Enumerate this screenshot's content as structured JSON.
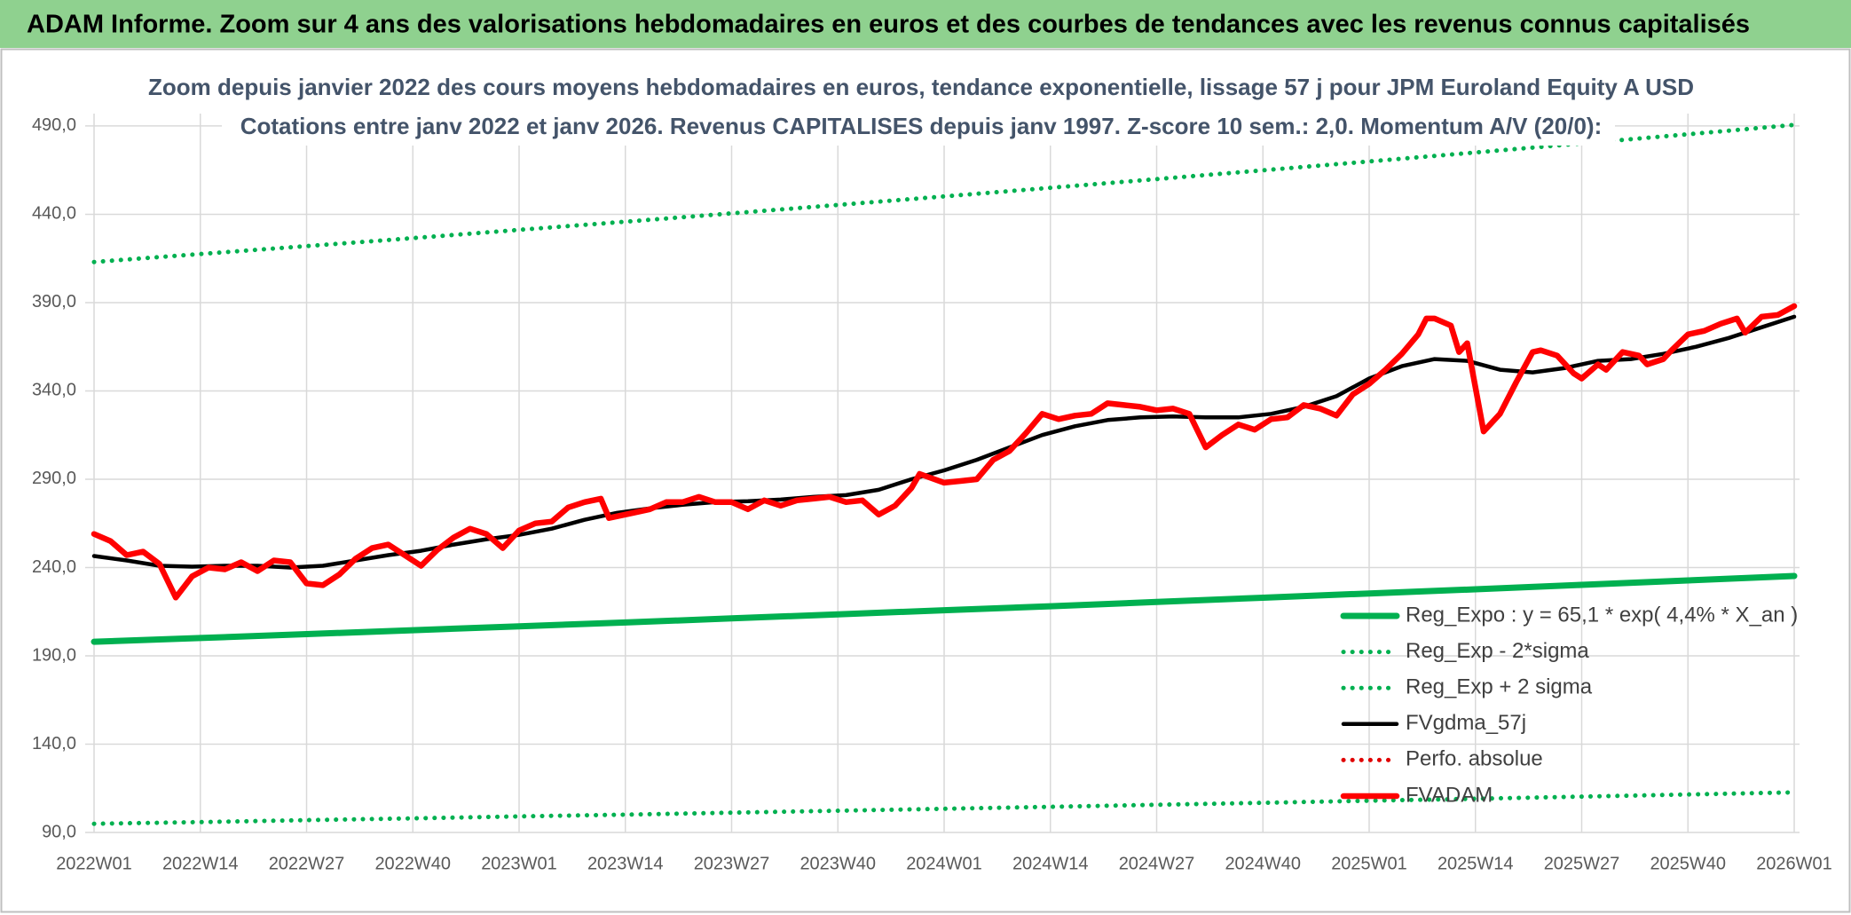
{
  "header": {
    "title": "ADAM Informe. Zoom sur 4 ans des valorisations hebdomadaires en euros et des courbes de tendances avec les revenus connus capitalisés"
  },
  "chart_data": {
    "type": "line",
    "title": "Zoom depuis janvier 2022 des cours moyens hebdomadaires en euros, tendance exponentielle, lissage 57 j pour JPM Euroland Equity A USD",
    "subtitle": "Cotations entre janv 2022 et janv 2026. Revenus CAPITALISES depuis janv 1997. Z-score 10 sem.: 2,0. Momentum A/V (20/0):",
    "xticks": [
      "2022W01",
      "2022W14",
      "2022W27",
      "2022W40",
      "2023W01",
      "2023W14",
      "2023W27",
      "2023W40",
      "2024W01",
      "2024W14",
      "2024W27",
      "2024W40",
      "2025W01",
      "2025W14",
      "2025W27",
      "2025W40",
      "2026W01"
    ],
    "ylim": [
      90,
      497
    ],
    "yticks": [
      {
        "value": 90,
        "label": "90,0"
      },
      {
        "value": 140,
        "label": "140,0"
      },
      {
        "value": 190,
        "label": "190,0"
      },
      {
        "value": 240,
        "label": "240,0"
      },
      {
        "value": 290,
        "label": "290,0"
      },
      {
        "value": 340,
        "label": "340,0"
      },
      {
        "value": 390,
        "label": "390,0"
      },
      {
        "value": 440,
        "label": "440,0"
      },
      {
        "value": 490,
        "label": "490,0"
      }
    ],
    "grid": true,
    "legend": "lower-right",
    "series": [
      {
        "name": "Reg_Expo : y = 65,1 * exp( 4,4% *  X_an )",
        "color": "#00b050",
        "style": "thick",
        "x": [
          "2022W01",
          "2022W14",
          "2022W27",
          "2022W40",
          "2023W01",
          "2023W14",
          "2023W27",
          "2023W40",
          "2024W01",
          "2024W14",
          "2024W27",
          "2024W40",
          "2025W01",
          "2025W14",
          "2025W27",
          "2025W40",
          "2026W01"
        ],
        "values": [
          198.0,
          200.1,
          202.3,
          204.5,
          206.7,
          208.9,
          211.2,
          213.5,
          215.8,
          218.1,
          220.5,
          222.9,
          225.3,
          227.7,
          230.2,
          232.7,
          235.2
        ]
      },
      {
        "name": "Reg_Exp - 2*sigma",
        "color": "#00b050",
        "style": "dotted",
        "x": [
          "2022W01",
          "2022W14",
          "2022W27",
          "2022W40",
          "2023W01",
          "2023W14",
          "2023W27",
          "2023W40",
          "2024W01",
          "2024W14",
          "2024W27",
          "2024W40",
          "2025W01",
          "2025W14",
          "2025W27",
          "2025W40",
          "2026W01"
        ],
        "values": [
          94.9,
          95.9,
          97.0,
          98.0,
          99.1,
          100.1,
          101.2,
          102.3,
          103.4,
          104.5,
          105.7,
          106.8,
          108.0,
          109.1,
          110.3,
          111.5,
          112.7
        ]
      },
      {
        "name": "Reg_Exp + 2 sigma",
        "color": "#00b050",
        "style": "dotted",
        "x": [
          "2022W01",
          "2022W14",
          "2022W27",
          "2022W40",
          "2023W01",
          "2023W14",
          "2023W27",
          "2023W40",
          "2024W01",
          "2024W14",
          "2024W27",
          "2024W40",
          "2025W01",
          "2025W14",
          "2025W27",
          "2025W40",
          "2026W01"
        ],
        "values": [
          413.0,
          417.5,
          422.0,
          426.5,
          431.2,
          435.8,
          440.5,
          445.3,
          450.1,
          455.0,
          459.9,
          464.9,
          469.9,
          475.0,
          480.1,
          485.3,
          490.6
        ]
      },
      {
        "name": "FVgdma_57j",
        "color": "#000000",
        "style": "solid",
        "x": [
          "2022W01",
          "2022W05",
          "2022W09",
          "2022W13",
          "2022W17",
          "2022W21",
          "2022W25",
          "2022W29",
          "2022W33",
          "2022W37",
          "2022W41",
          "2022W45",
          "2022W49",
          "2023W01",
          "2023W05",
          "2023W09",
          "2023W13",
          "2023W17",
          "2023W21",
          "2023W25",
          "2023W29",
          "2023W33",
          "2023W37",
          "2023W41",
          "2023W45",
          "2023W49",
          "2024W01",
          "2024W05",
          "2024W09",
          "2024W13",
          "2024W17",
          "2024W21",
          "2024W25",
          "2024W29",
          "2024W33",
          "2024W37",
          "2024W41",
          "2024W45",
          "2024W49",
          "2025W01",
          "2025W05",
          "2025W09",
          "2025W13",
          "2025W17",
          "2025W21",
          "2025W25",
          "2025W29",
          "2025W33",
          "2025W37",
          "2025W41",
          "2025W45",
          "2025W49",
          "2026W01"
        ],
        "values": [
          246.5,
          244,
          241,
          240.5,
          241,
          241,
          240,
          241,
          244,
          247,
          249.5,
          253,
          256,
          258.5,
          262,
          267,
          271,
          273.5,
          275.5,
          277,
          277.5,
          278.5,
          280,
          281,
          284,
          290,
          295,
          301,
          308,
          315,
          320,
          323.5,
          325,
          325.5,
          325,
          325,
          327,
          331,
          337,
          347,
          354,
          358,
          357,
          352,
          350.5,
          353,
          357,
          358,
          361,
          365,
          370,
          376,
          382
        ]
      },
      {
        "name": "Perfo. absolue",
        "color": "#e00000",
        "style": "dotted",
        "x": [],
        "values": []
      },
      {
        "name": "FVADAM",
        "color": "#ff0000",
        "style": "thick",
        "x": [
          "2022W01",
          "2022W03",
          "2022W05",
          "2022W07",
          "2022W09",
          "2022W11",
          "2022W13",
          "2022W15",
          "2022W17",
          "2022W19",
          "2022W21",
          "2022W23",
          "2022W25",
          "2022W27",
          "2022W29",
          "2022W31",
          "2022W33",
          "2022W35",
          "2022W37",
          "2022W39",
          "2022W41",
          "2022W43",
          "2022W45",
          "2022W47",
          "2022W49",
          "2022W51",
          "2023W01",
          "2023W03",
          "2023W05",
          "2023W07",
          "2023W09",
          "2023W11",
          "2023W12",
          "2023W15",
          "2023W17",
          "2023W19",
          "2023W21",
          "2023W23",
          "2023W25",
          "2023W27",
          "2023W29",
          "2023W31",
          "2023W33",
          "2023W35",
          "2023W37",
          "2023W39",
          "2023W41",
          "2023W43",
          "2023W45",
          "2023W47",
          "2023W49",
          "2023W50",
          "2024W01",
          "2024W03",
          "2024W05",
          "2024W07",
          "2024W09",
          "2024W11",
          "2024W13",
          "2024W15",
          "2024W17",
          "2024W19",
          "2024W21",
          "2024W23",
          "2024W25",
          "2024W27",
          "2024W29",
          "2024W31",
          "2024W33",
          "2024W35",
          "2024W37",
          "2024W39",
          "2024W41",
          "2024W43",
          "2024W45",
          "2024W47",
          "2024W49",
          "2024W51",
          "2025W01",
          "2025W03",
          "2025W05",
          "2025W07",
          "2025W08",
          "2025W09",
          "2025W11",
          "2025W12",
          "2025W13",
          "2025W15",
          "2025W17",
          "2025W19",
          "2025W21",
          "2025W22",
          "2025W24",
          "2025W26",
          "2025W27",
          "2025W29",
          "2025W30",
          "2025W32",
          "2025W34",
          "2025W35",
          "2025W37",
          "2025W38",
          "2025W40",
          "2025W42",
          "2025W44",
          "2025W46",
          "2025W47",
          "2025W49",
          "2025W51",
          "2026W01"
        ],
        "values": [
          259,
          255,
          247,
          249,
          242,
          223,
          235,
          240,
          239,
          243,
          238,
          244,
          243,
          231,
          230,
          236,
          245,
          251,
          253,
          247,
          241,
          250,
          257,
          262,
          259,
          251,
          261,
          265,
          266,
          274,
          277,
          279,
          268,
          271,
          273,
          277,
          277,
          280,
          277,
          277,
          273,
          278,
          275,
          278,
          279,
          280,
          277,
          278,
          270,
          275,
          285,
          293,
          288,
          289,
          290,
          301,
          306,
          316,
          327,
          324,
          326,
          327,
          333,
          332,
          331,
          329,
          330,
          327,
          308,
          315,
          321,
          318,
          324,
          325,
          332,
          330,
          326,
          338,
          344,
          352,
          361,
          372,
          381,
          381,
          377,
          362,
          367,
          317,
          327,
          345,
          362,
          363,
          360,
          350,
          347,
          355,
          352,
          362,
          360,
          355,
          358,
          363,
          372,
          374,
          378,
          381,
          373,
          382,
          383,
          388
        ]
      }
    ]
  }
}
